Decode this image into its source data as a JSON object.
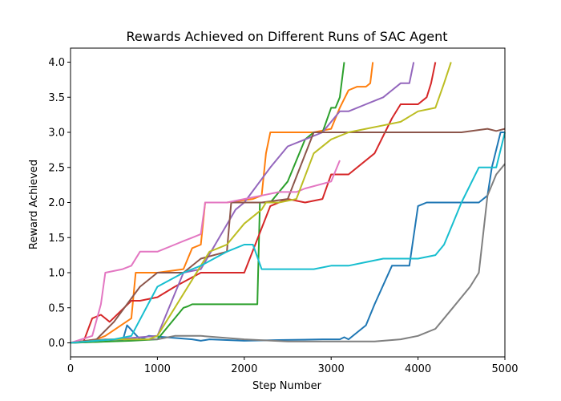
{
  "chart_data": {
    "type": "line",
    "title": "Rewards Achieved on Different Runs of SAC Agent",
    "xlabel": "Step Number",
    "ylabel": "Reward Achieved",
    "xlim": [
      0,
      5000
    ],
    "ylim": [
      -0.2,
      4.2
    ],
    "xticks": [
      0,
      1000,
      2000,
      3000,
      4000,
      5000
    ],
    "yticks": [
      0.0,
      0.5,
      1.0,
      1.5,
      2.0,
      2.5,
      3.0,
      3.5,
      4.0
    ],
    "xtick_labels": [
      "0",
      "1000",
      "2000",
      "3000",
      "4000",
      "5000"
    ],
    "ytick_labels": [
      "0.0",
      "0.5",
      "1.0",
      "1.5",
      "2.0",
      "2.5",
      "3.0",
      "3.5",
      "4.0"
    ],
    "grid": false,
    "legend": "none",
    "series": [
      {
        "color": "#1f77b4",
        "x": [
          0,
          600,
          650,
          800,
          900,
          1400,
          1500,
          1600,
          2000,
          2400,
          2900,
          3100,
          3150,
          3200,
          3400,
          3500,
          3700,
          3900,
          4000,
          4100,
          4300,
          4400,
          4700,
          4800,
          4850,
          4950,
          5000
        ],
        "y": [
          0.0,
          0.03,
          0.25,
          0.05,
          0.1,
          0.05,
          0.03,
          0.05,
          0.03,
          0.04,
          0.05,
          0.05,
          0.08,
          0.05,
          0.25,
          0.55,
          1.1,
          1.1,
          1.95,
          2.0,
          2.0,
          2.0,
          2.0,
          2.1,
          2.5,
          3.0,
          3.0
        ]
      },
      {
        "color": "#ff7f0e",
        "x": [
          0,
          300,
          400,
          700,
          750,
          1000,
          1300,
          1400,
          1500,
          1550,
          1800,
          2100,
          2200,
          2250,
          2300,
          2500,
          2800,
          3000,
          3100,
          3200,
          3300,
          3400,
          3450,
          3480
        ],
        "y": [
          0.0,
          0.05,
          0.1,
          0.35,
          1.0,
          1.0,
          1.05,
          1.35,
          1.4,
          2.0,
          2.0,
          2.05,
          2.1,
          2.7,
          3.0,
          3.0,
          3.0,
          3.05,
          3.35,
          3.6,
          3.65,
          3.65,
          3.7,
          4.0
        ]
      },
      {
        "color": "#2ca02c",
        "x": [
          0,
          700,
          1000,
          1300,
          1350,
          1400,
          1600,
          2000,
          2150,
          2180,
          2300,
          2500,
          2700,
          2800,
          2900,
          3000,
          3050,
          3100,
          3150
        ],
        "y": [
          0.0,
          0.03,
          0.05,
          0.5,
          0.52,
          0.55,
          0.55,
          0.55,
          0.55,
          2.0,
          2.0,
          2.3,
          2.9,
          3.0,
          3.0,
          3.35,
          3.35,
          3.5,
          4.0
        ]
      },
      {
        "color": "#d62728",
        "x": [
          0,
          150,
          250,
          350,
          450,
          700,
          800,
          1000,
          1200,
          1500,
          1700,
          2000,
          2300,
          2500,
          2700,
          2900,
          3000,
          3200,
          3500,
          3700,
          3800,
          3900,
          4000,
          4100,
          4150,
          4200
        ],
        "y": [
          0.0,
          0.02,
          0.35,
          0.4,
          0.3,
          0.6,
          0.6,
          0.65,
          0.8,
          1.0,
          1.0,
          1.0,
          1.95,
          2.05,
          2.0,
          2.05,
          2.4,
          2.4,
          2.7,
          3.2,
          3.4,
          3.4,
          3.4,
          3.5,
          3.7,
          4.0
        ]
      },
      {
        "color": "#9467bd",
        "x": [
          0,
          500,
          1000,
          1300,
          1500,
          1900,
          2000,
          2300,
          2500,
          2700,
          2900,
          3100,
          3200,
          3400,
          3600,
          3700,
          3800,
          3850,
          3900,
          3950
        ],
        "y": [
          0.0,
          0.05,
          0.1,
          1.0,
          1.05,
          1.9,
          2.0,
          2.5,
          2.8,
          2.9,
          3.0,
          3.3,
          3.3,
          3.4,
          3.5,
          3.6,
          3.7,
          3.7,
          3.7,
          4.0
        ]
      },
      {
        "color": "#8c564b",
        "x": [
          0,
          300,
          500,
          800,
          1000,
          1300,
          1500,
          1800,
          1850,
          2000,
          2200,
          2500,
          2800,
          3000,
          3500,
          4000,
          4500,
          4800,
          4900,
          5000
        ],
        "y": [
          0.0,
          0.05,
          0.3,
          0.8,
          1.0,
          1.0,
          1.2,
          1.3,
          2.0,
          2.0,
          2.0,
          2.05,
          3.0,
          3.0,
          3.0,
          3.0,
          3.0,
          3.05,
          3.02,
          3.05
        ]
      },
      {
        "color": "#e377c2",
        "x": [
          0,
          250,
          350,
          400,
          600,
          700,
          800,
          1000,
          1200,
          1300,
          1400,
          1500,
          1550,
          1800,
          2000,
          2200,
          2400,
          2600,
          2700,
          3000,
          3100
        ],
        "y": [
          0.0,
          0.1,
          0.55,
          1.0,
          1.05,
          1.1,
          1.3,
          1.3,
          1.4,
          1.45,
          1.5,
          1.55,
          2.0,
          2.0,
          2.05,
          2.1,
          2.15,
          2.15,
          2.2,
          2.3,
          2.6
        ]
      },
      {
        "color": "#7f7f7f",
        "x": [
          0,
          400,
          800,
          1000,
          1200,
          1500,
          2000,
          2500,
          3000,
          3300,
          3500,
          3800,
          4000,
          4200,
          4400,
          4600,
          4700,
          4800,
          4900,
          5000
        ],
        "y": [
          0.0,
          0.05,
          0.05,
          0.05,
          0.1,
          0.1,
          0.05,
          0.02,
          0.02,
          0.02,
          0.02,
          0.05,
          0.1,
          0.2,
          0.5,
          0.8,
          1.0,
          2.1,
          2.4,
          2.55
        ]
      },
      {
        "color": "#bcbd22",
        "x": [
          0,
          500,
          900,
          1000,
          1100,
          1200,
          1400,
          1500,
          1600,
          1700,
          1800,
          2000,
          2200,
          2250,
          2400,
          2600,
          2800,
          3000,
          3200,
          3400,
          3600,
          3800,
          4000,
          4200,
          4300,
          4380
        ],
        "y": [
          0.0,
          0.05,
          0.05,
          0.1,
          0.3,
          0.5,
          0.9,
          1.1,
          1.3,
          1.35,
          1.4,
          1.7,
          1.9,
          2.0,
          2.0,
          2.05,
          2.7,
          2.9,
          3.0,
          3.05,
          3.1,
          3.15,
          3.3,
          3.35,
          3.7,
          4.0
        ]
      },
      {
        "color": "#17becf",
        "x": [
          0,
          500,
          700,
          1000,
          1300,
          1500,
          1800,
          2000,
          2100,
          2200,
          2300,
          2600,
          2800,
          3000,
          3200,
          3400,
          3600,
          3800,
          4000,
          4200,
          4300,
          4400,
          4500,
          4700,
          4800,
          4900,
          5000
        ],
        "y": [
          0.0,
          0.05,
          0.1,
          0.8,
          1.0,
          1.1,
          1.3,
          1.4,
          1.4,
          1.05,
          1.05,
          1.05,
          1.05,
          1.1,
          1.1,
          1.15,
          1.2,
          1.2,
          1.2,
          1.25,
          1.4,
          1.7,
          2.0,
          2.5,
          2.5,
          2.5,
          3.0
        ]
      }
    ]
  }
}
